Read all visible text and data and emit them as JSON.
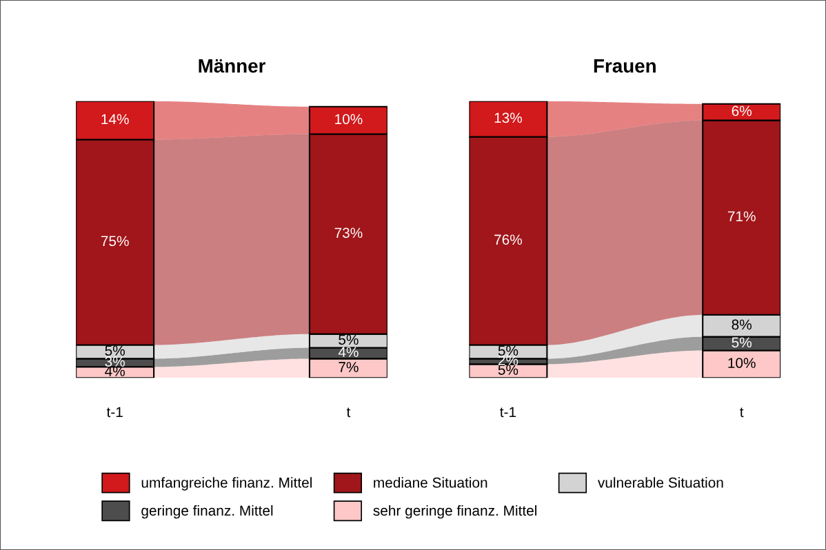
{
  "chart_data": [
    {
      "type": "bar",
      "title": "Männer",
      "categories": [
        "t-1",
        "t"
      ],
      "stacked": true,
      "legend": "bottom",
      "series": [
        {
          "name": "sehr geringe finanz. Mittel",
          "color": "#ffc8c8",
          "values": [
            4,
            7
          ],
          "value_labels": [
            "4%",
            "7%"
          ]
        },
        {
          "name": "geringe finanz. Mittel",
          "color": "#4d4d4d",
          "values": [
            3,
            4
          ],
          "value_labels": [
            "3%",
            "4%"
          ]
        },
        {
          "name": "vulnerable Situation",
          "color": "#d3d3d3",
          "values": [
            5,
            5
          ],
          "value_labels": [
            "5%",
            "5%"
          ]
        },
        {
          "name": "mediane Situation",
          "color": "#a0161a",
          "values": [
            75,
            73
          ],
          "value_labels": [
            "75%",
            "73%"
          ]
        },
        {
          "name": "umfangreiche finanz. Mittel",
          "color": "#d2191b",
          "values": [
            14,
            10
          ],
          "value_labels": [
            "14%",
            "10%"
          ]
        }
      ]
    },
    {
      "type": "bar",
      "title": "Frauen",
      "categories": [
        "t-1",
        "t"
      ],
      "stacked": true,
      "series": [
        {
          "color": "#ffc8c8",
          "values": [
            5,
            10
          ],
          "value_labels": [
            "5%",
            "10%"
          ]
        },
        {
          "color": "#4d4d4d",
          "values": [
            2,
            5
          ],
          "value_labels": [
            "2%",
            "5%"
          ]
        },
        {
          "color": "#d3d3d3",
          "values": [
            5,
            8
          ],
          "value_labels": [
            "5%",
            "8%"
          ]
        },
        {
          "color": "#a0161a",
          "values": [
            76,
            71
          ],
          "value_labels": [
            "76%",
            "71%"
          ]
        },
        {
          "color": "#d2191b",
          "values": [
            13,
            6
          ],
          "value_labels": [
            "13%",
            "6%"
          ]
        }
      ]
    }
  ]
}
